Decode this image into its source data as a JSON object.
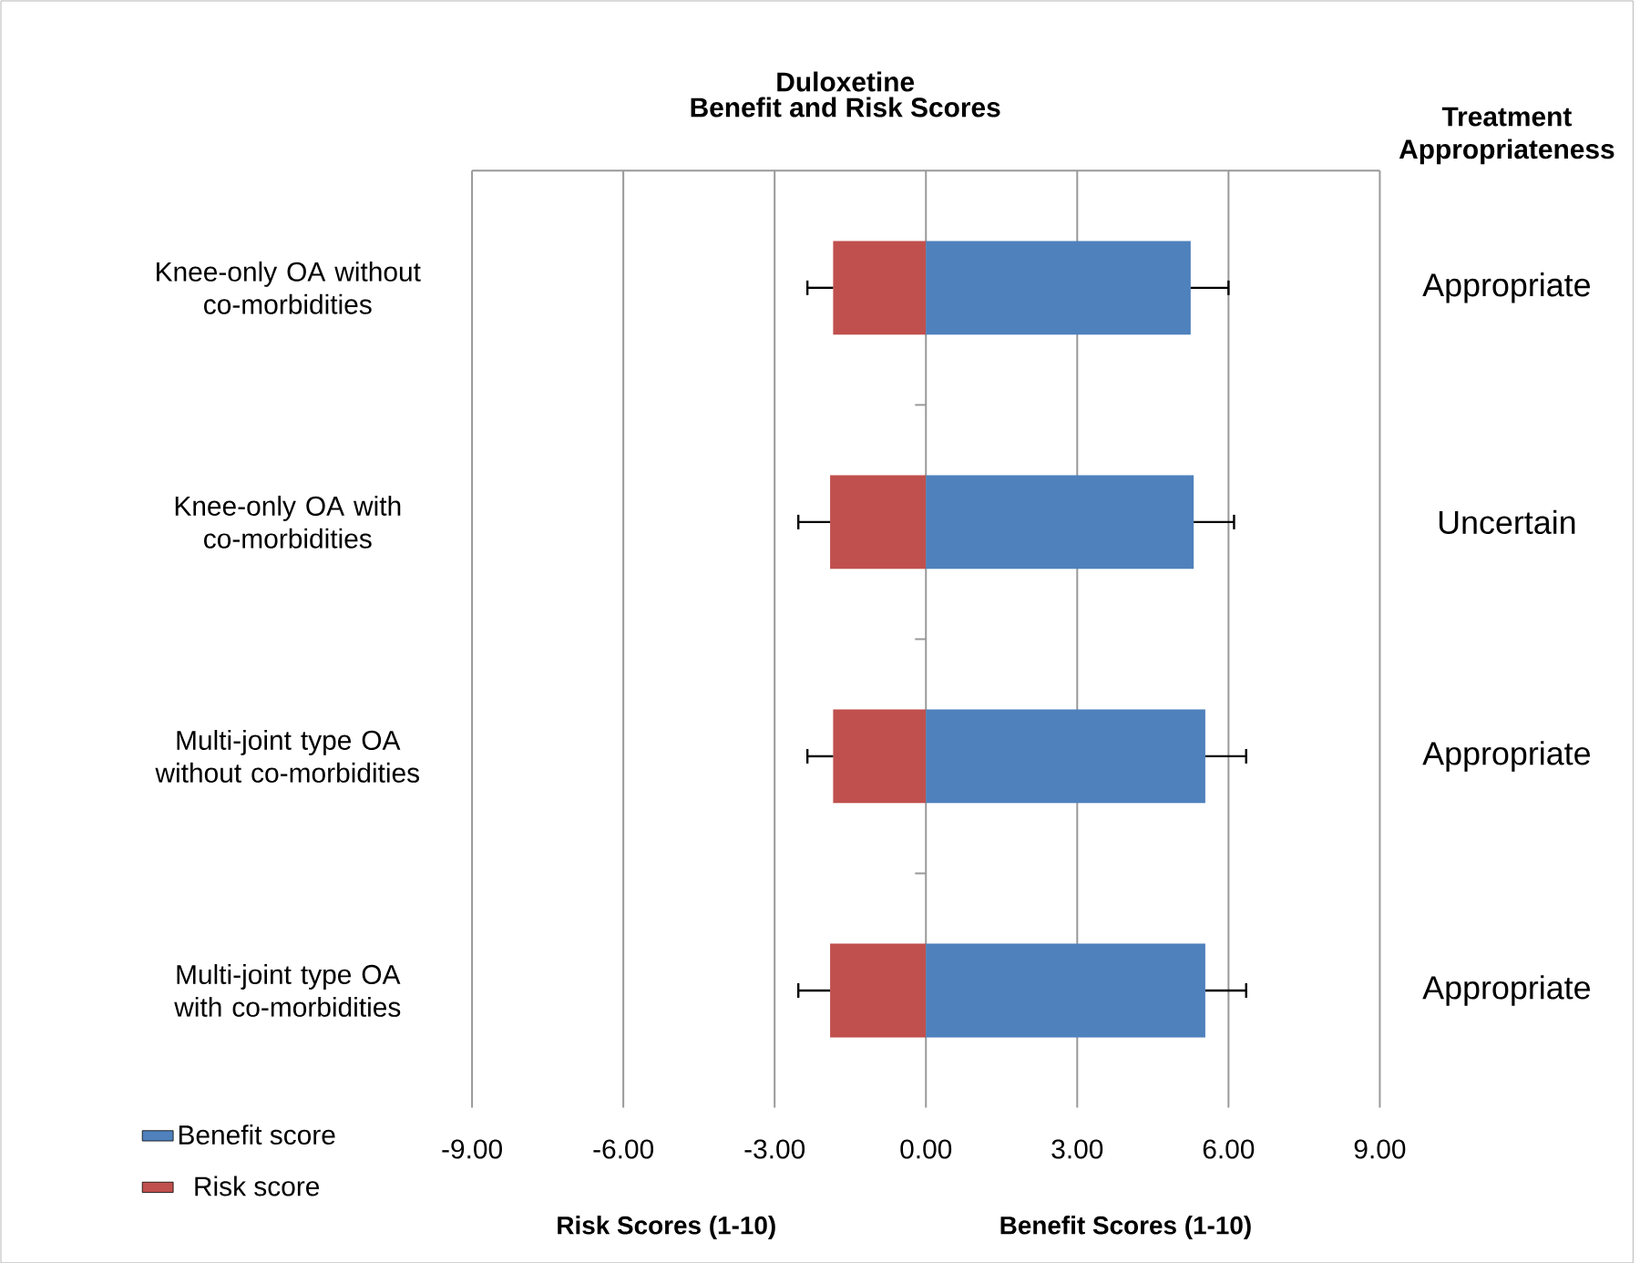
{
  "chart_data": {
    "type": "bar",
    "orientation": "horizontal",
    "stacked": true,
    "title": "Duloxetine",
    "subtitle": "Benefit and Risk Scores",
    "categories": [
      "Knee-only OA without co-morbidities",
      "Knee-only OA with co-morbidities",
      "Multi-joint type OA without co-morbidities",
      "Multi-joint type OA with co-morbidities"
    ],
    "series": [
      {
        "name": "Risk score",
        "color": "#c0504d",
        "values": [
          -1.84,
          -1.9,
          -1.84,
          -1.9
        ],
        "errors": [
          [
            -2.35,
            -1.84
          ],
          [
            -2.53,
            -1.9
          ],
          [
            -2.35,
            -1.84
          ],
          [
            -2.53,
            -1.9
          ]
        ]
      },
      {
        "name": "Benefit score",
        "color": "#4f81bd",
        "values": [
          5.25,
          5.31,
          5.54,
          5.54
        ],
        "errors": [
          [
            5.25,
            6.0
          ],
          [
            5.31,
            6.11
          ],
          [
            5.54,
            6.35
          ],
          [
            5.54,
            6.35
          ]
        ]
      }
    ],
    "xlim": [
      -9,
      9
    ],
    "xticks": [
      {
        "value": -9,
        "label": "-9.00"
      },
      {
        "value": -6,
        "label": "-6.00"
      },
      {
        "value": -3,
        "label": "-3.00"
      },
      {
        "value": 0,
        "label": "0.00"
      },
      {
        "value": 3,
        "label": "3.00"
      },
      {
        "value": 6,
        "label": "6.00"
      },
      {
        "value": 9,
        "label": "9.00"
      }
    ],
    "grid": "x",
    "legend": "bottom left",
    "annotations": [
      "Treatment Appropriateness",
      "Appropriate",
      "Uncertain",
      "Appropriate",
      "Appropriate",
      "Risk  Scores (1-10)",
      "Benefit Scores (1-10)"
    ]
  }
}
